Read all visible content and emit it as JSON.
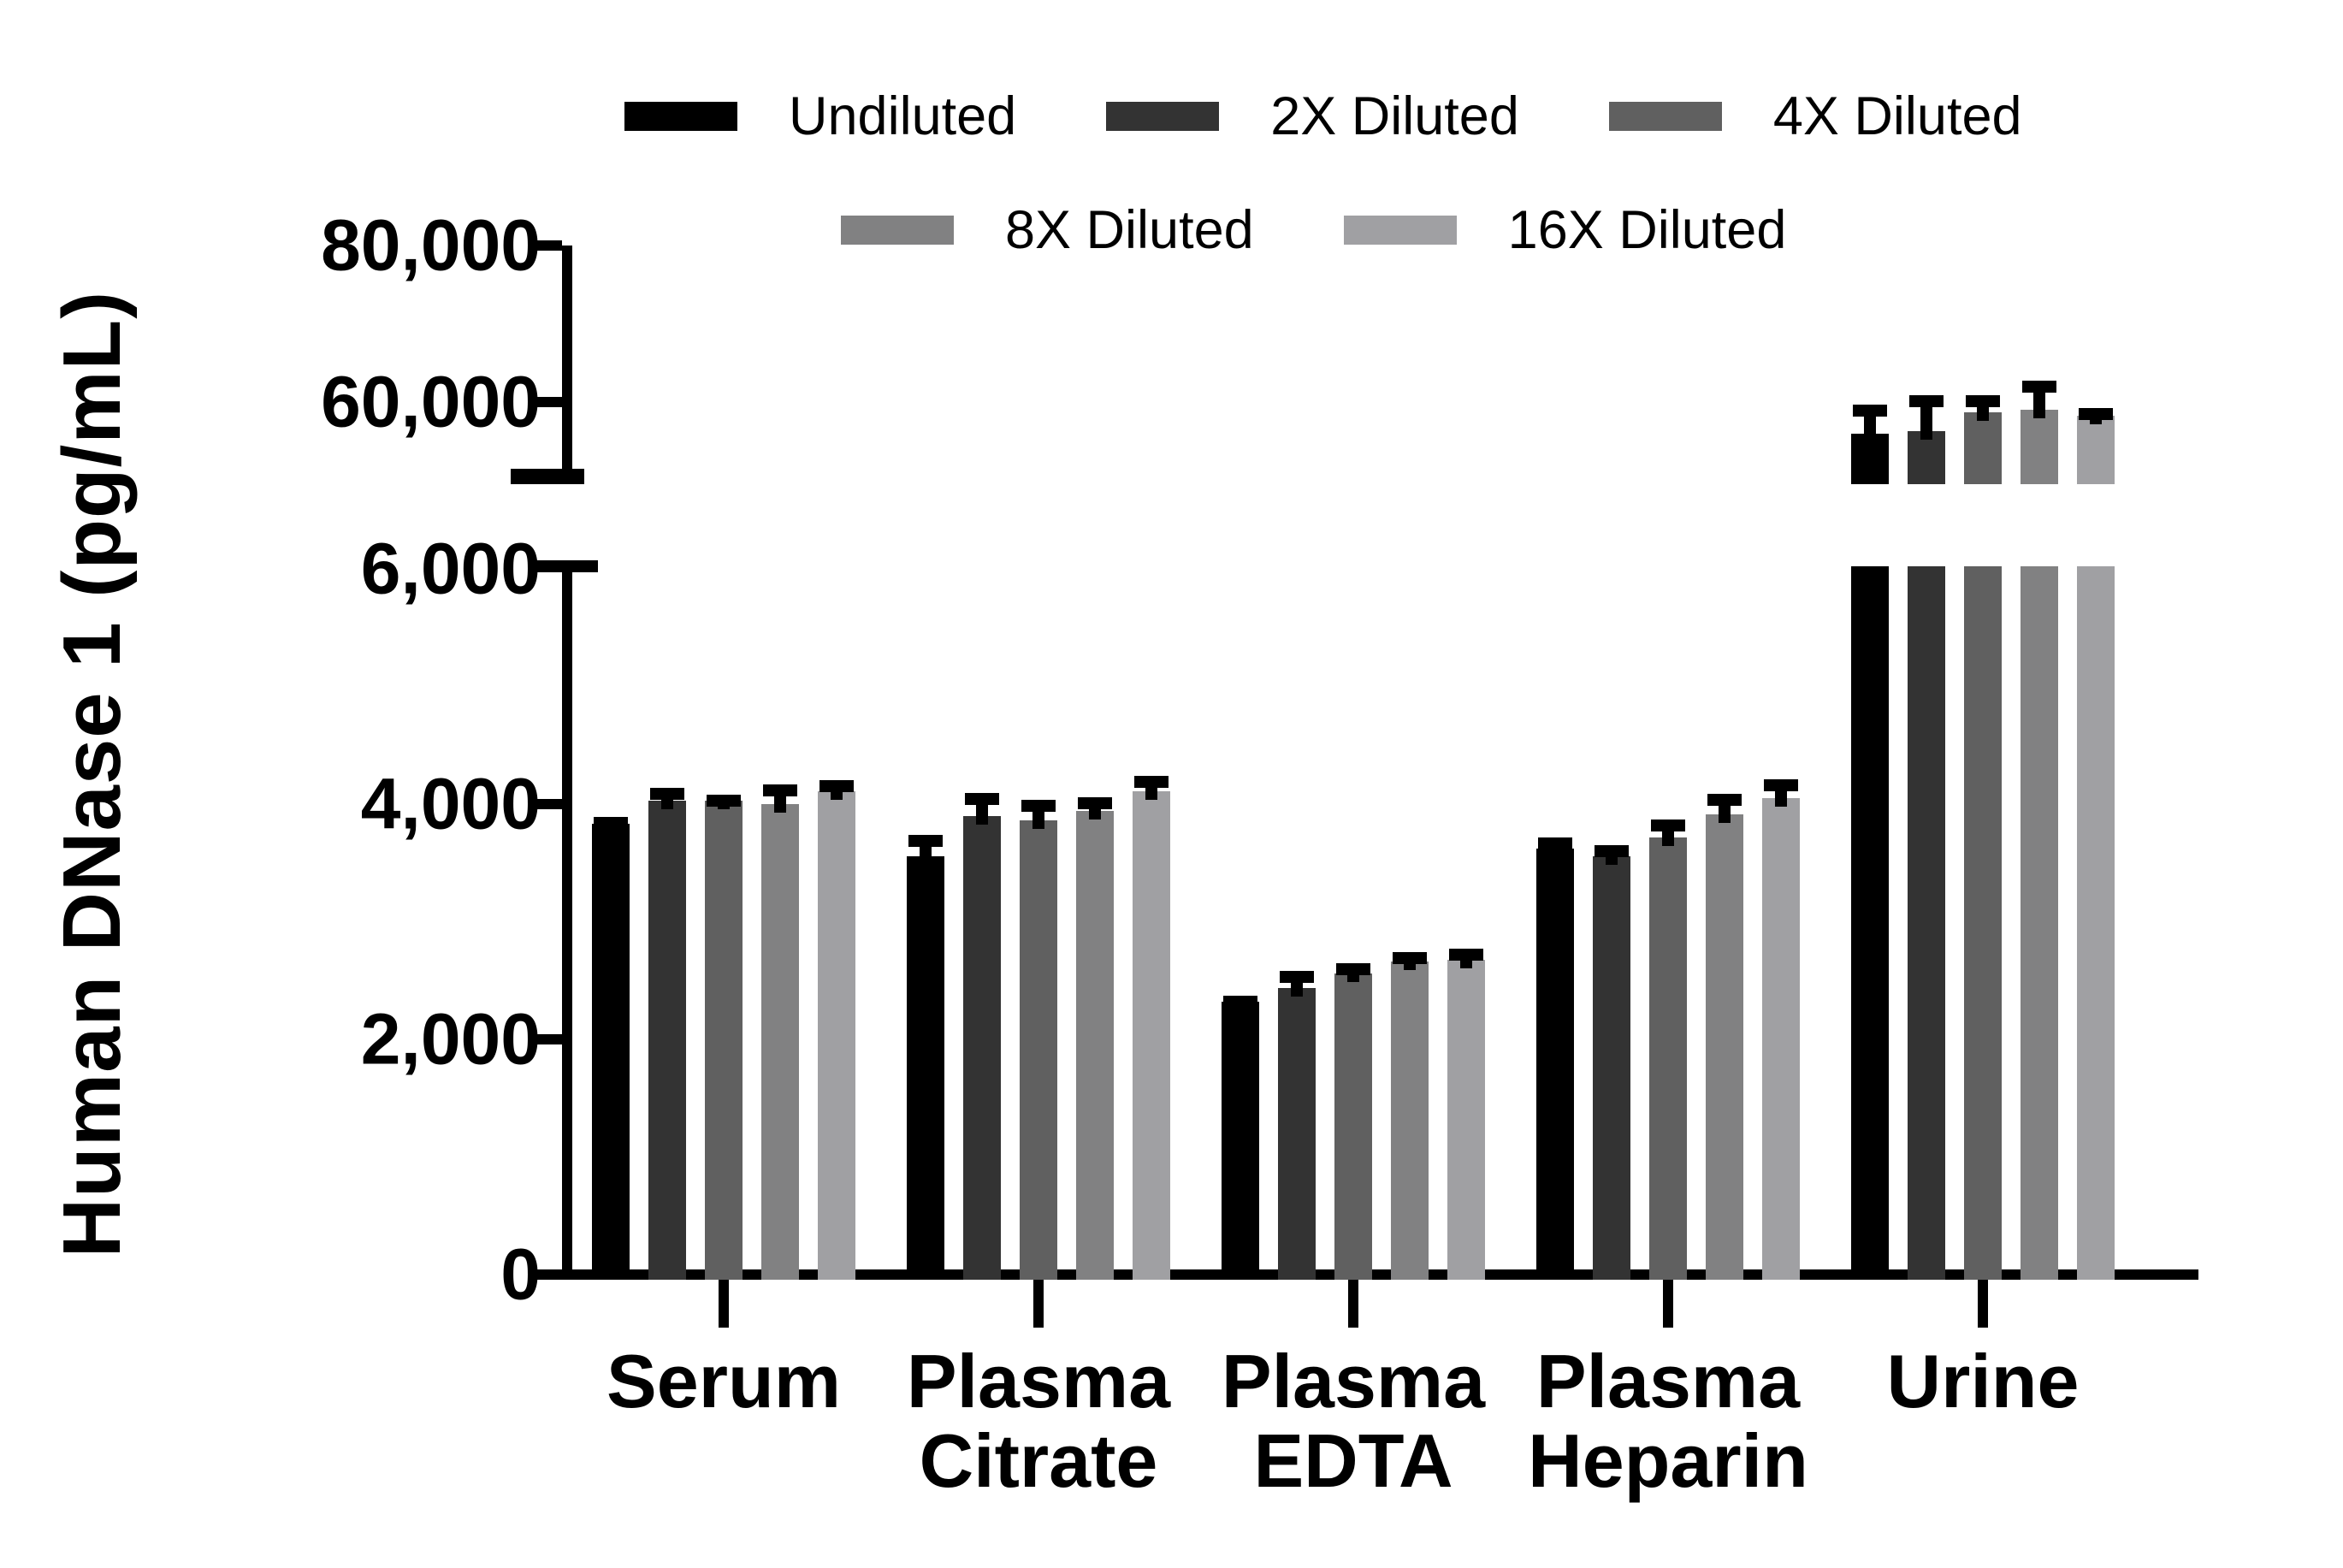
{
  "y_axis": {
    "label": "Human DNase 1 (pg/mL)",
    "lower_tick_labels": [
      "0",
      "2,000",
      "4,000",
      "6,000"
    ],
    "upper_tick_labels": [
      "60,000",
      "80,000"
    ]
  },
  "legend": {
    "row1": [
      "Undiluted",
      "2X Diluted",
      "4X Diluted"
    ],
    "row2": [
      "8X Diluted",
      "16X Diluted"
    ]
  },
  "chart_data": {
    "type": "bar",
    "title": "",
    "xlabel": "",
    "ylabel": "Human DNase 1 (pg/mL)",
    "legend_position": "top",
    "grid": false,
    "error_bars": "plus_sd_black_caps",
    "categories": [
      "Serum",
      "Plasma Citrate",
      "Plasma EDTA",
      "Plasma Heparin",
      "Urine"
    ],
    "category_lines": [
      [
        "Serum"
      ],
      [
        "Plasma",
        "Citrate"
      ],
      [
        "Plasma",
        "EDTA"
      ],
      [
        "Plasma",
        "Heparin"
      ],
      [
        "Urine"
      ]
    ],
    "axis_break": {
      "lower_range": [
        0,
        6000
      ],
      "upper_range": [
        50000,
        80000
      ],
      "lower_tick_values": [
        0,
        2000,
        4000,
        6000
      ],
      "upper_tick_values": [
        60000,
        80000
      ]
    },
    "series": [
      {
        "name": "Undiluted",
        "color": "#000000",
        "values": [
          3830,
          3560,
          2320,
          3620,
          56000
        ],
        "errors": [
          60,
          180,
          50,
          100,
          3700
        ]
      },
      {
        "name": "2X Diluted",
        "color": "#333333",
        "values": [
          4030,
          3900,
          2440,
          3560,
          56300
        ],
        "errors": [
          110,
          195,
          145,
          90,
          4600
        ]
      },
      {
        "name": "4X Diluted",
        "color": "#606060",
        "values": [
          4030,
          3860,
          2560,
          3720,
          58700
        ],
        "errors": [
          50,
          175,
          85,
          150,
          2200
        ]
      },
      {
        "name": "8X Diluted",
        "color": "#818182",
        "values": [
          4000,
          3940,
          2660,
          3910,
          59000
        ],
        "errors": [
          170,
          115,
          85,
          175,
          3700
        ]
      },
      {
        "name": "16X Diluted",
        "color": "#a0a0a3",
        "values": [
          4110,
          4110,
          2680,
          4050,
          58300
        ],
        "errors": [
          95,
          130,
          90,
          160,
          900
        ]
      }
    ]
  }
}
